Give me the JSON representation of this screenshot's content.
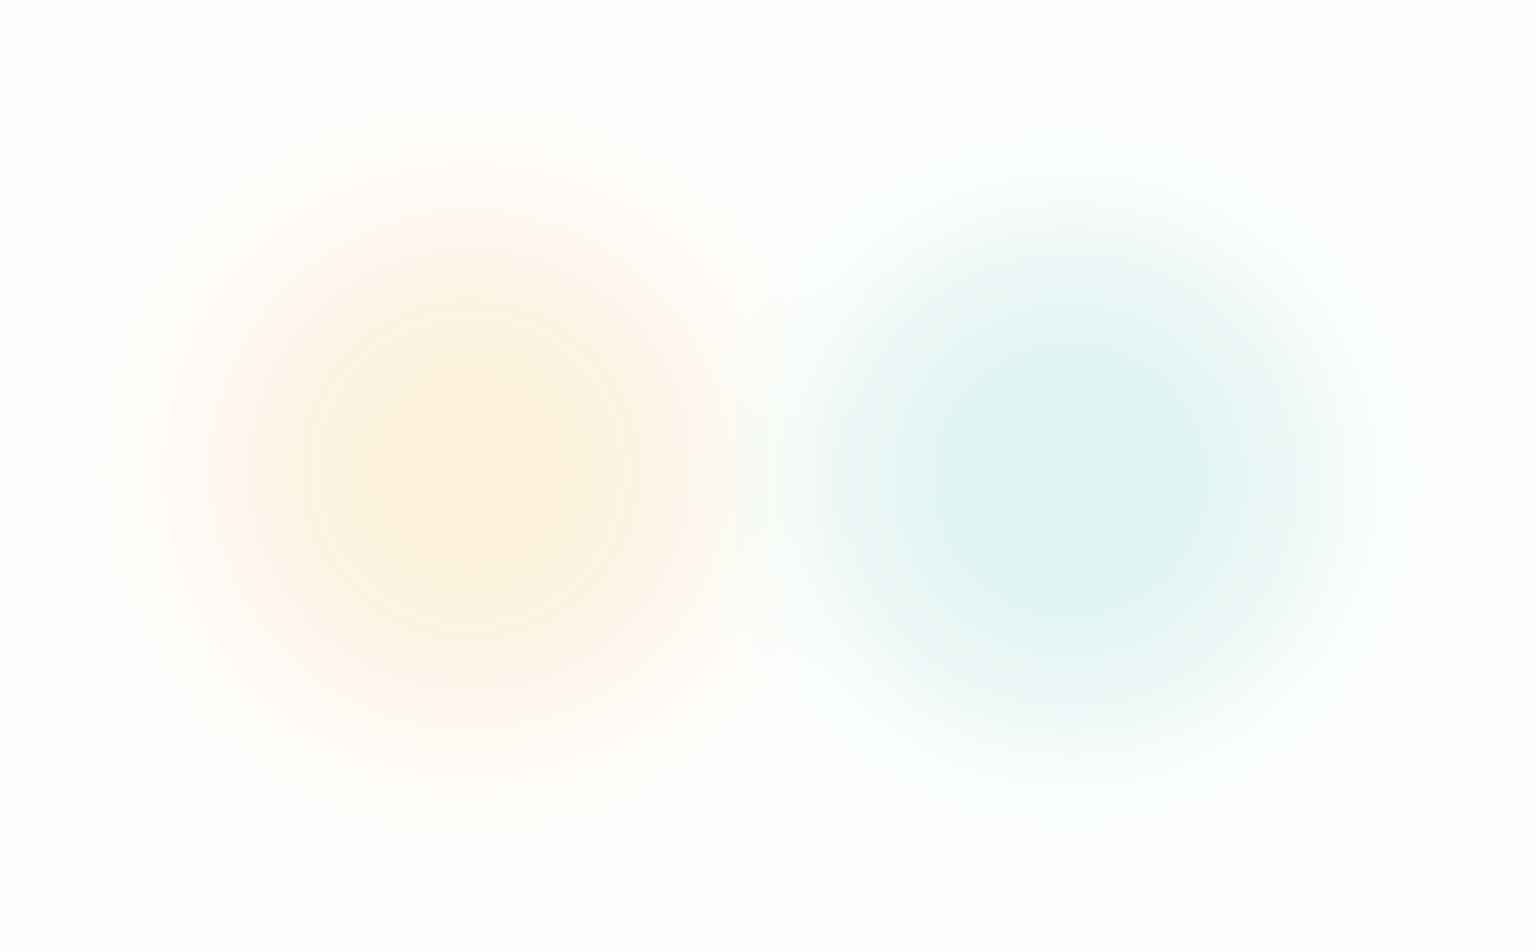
{
  "background": {
    "base_color": "#fdfdfd",
    "blobs": [
      {
        "name": "warm",
        "color": "#fdf3e0"
      },
      {
        "name": "cool",
        "color": "#dff4f1"
      }
    ]
  }
}
